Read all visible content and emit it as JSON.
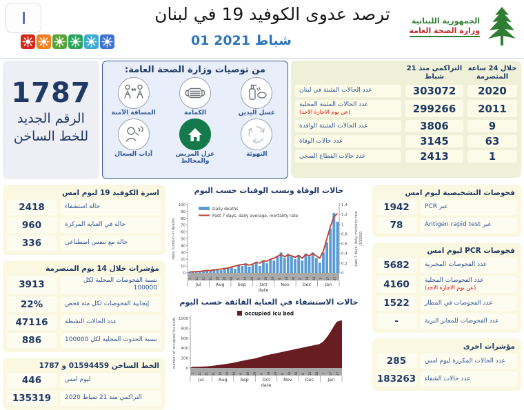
{
  "header": {
    "title": "ترصد عدوى الكوفيد 19 في لبنان",
    "date": "01 شباط 2021",
    "logo": {
      "line1": "الجمهورية اللبنانية",
      "line2": "وزارة الصحة العامة"
    },
    "virus_colors": [
      "#d6261a",
      "#f38020",
      "#58a339",
      "#2ba45f",
      "#3aabd6",
      "#3e74d1"
    ]
  },
  "hotline": {
    "number": "1787",
    "label": "الرقم الجديد للخط الساخن"
  },
  "recommendations": {
    "title": "من توصيات وزارة الصحة العامة:",
    "items": [
      {
        "label": "غسل اليدين",
        "icon": "handwash-icon"
      },
      {
        "label": "الكمامة",
        "icon": "mask-icon"
      },
      {
        "label": "المسافة الآمنة",
        "icon": "distance-icon"
      },
      {
        "label": "التهوئة",
        "icon": "ventilation-icon"
      },
      {
        "label": "عزل المريض والمخالط",
        "icon": "isolation-icon"
      },
      {
        "label": "آداب السعال",
        "icon": "cough-icon"
      }
    ]
  },
  "summary_table": {
    "col_24h": "خلال 24 ساعة المنصرمة",
    "col_cum": "التراكمي منذ 21 شباط",
    "rows": [
      {
        "label": "عدد الحالات المثبتة في لبنان",
        "note": "",
        "cum": "303072",
        "h24": "2020"
      },
      {
        "label": "عدد الحالات المثبتة المحلية",
        "note": "(عن يوم الاجازة الاحد)",
        "cum": "299266",
        "h24": "2011"
      },
      {
        "label": "عدد الحالات المثبتة الوافدة",
        "note": "",
        "cum": "3806",
        "h24": "9"
      },
      {
        "label": "عدد حالات الوفاة",
        "note": "",
        "cum": "3145",
        "h24": "63"
      },
      {
        "label": "عدد حالات القطاع الصحي",
        "note": "",
        "cum": "2413",
        "h24": "1"
      }
    ]
  },
  "left_column": {
    "sections": [
      {
        "title": "اسرة الكوفيد 19 ليوم امس",
        "rows": [
          {
            "value": "2418",
            "label": "حالة استشفاء",
            "note": ""
          },
          {
            "value": "960",
            "label": "حالة في العناية المركزة",
            "note": ""
          },
          {
            "value": "336",
            "label": "حالة مع تنفس اصطناعي",
            "note": ""
          }
        ]
      },
      {
        "title": "مؤشرات خلال 14 يوم المنصرمة",
        "rows": [
          {
            "value": "3913",
            "label": "نسبة الفحوصات المحلية لكل 100000",
            "note": ""
          },
          {
            "value": "22%",
            "label": "إيجابية الفحوصات لكل مئة فحص",
            "note": ""
          },
          {
            "value": "47116",
            "label": "عدد الحالات النشطة",
            "note": ""
          },
          {
            "value": "886",
            "label": "نسبة الحدوث المحلية لكل 100000",
            "note": ""
          }
        ]
      },
      {
        "title": "الخط الساخن 01594459 و 1787",
        "rows": [
          {
            "value": "446",
            "label": "ليوم امس",
            "note": ""
          },
          {
            "value": "135319",
            "label": "التراكمي منذ 21 شباط 2020",
            "note": ""
          }
        ]
      }
    ]
  },
  "right_column": {
    "sections": [
      {
        "title": "فحوصات التشخيصية ليوم امس",
        "rows": [
          {
            "value": "1942",
            "label": "عبر PCR",
            "note": ""
          },
          {
            "value": "78",
            "label": "عبر Antigen rapid test",
            "note": ""
          }
        ]
      },
      {
        "title": "فحوصات PCR ليوم امس",
        "rows": [
          {
            "value": "5682",
            "label": "عدد الفحوصات المخبرية",
            "note": ""
          },
          {
            "value": "4160",
            "label": "عدد الفحوصات المحلية",
            "note": "(عن يوم الاجازة الاحد)"
          },
          {
            "value": "1522",
            "label": "عدد الفحوصات في المطار",
            "note": ""
          },
          {
            "value": "-",
            "label": "عدد الفحوصات للمعابر البرية",
            "note": ""
          }
        ]
      },
      {
        "title": "مؤشرات اخرى",
        "rows": [
          {
            "value": "285",
            "label": "عدد الحالات المكررة  ليوم امس",
            "note": ""
          },
          {
            "value": "183263",
            "label": "عدد حالات الشفاء",
            "note": ""
          }
        ]
      }
    ]
  },
  "chart_data": [
    {
      "type": "bar",
      "title": "حالات الوفاة ونسب الوفيات حسب اليوم",
      "legend": [
        "Daily deaths",
        "Past 7 days, daily average, mortality rate"
      ],
      "ylabel_left": "daily number of deaths",
      "ylabel_right": "past 7 days, daily mortality rate",
      "ylabel_right2": "/100000",
      "xlabel": "date",
      "ylim_left": [
        0,
        100
      ],
      "ylim_right": [
        0,
        1.4
      ],
      "months": [
        "Jul",
        "Aug",
        "Sep",
        "Oct",
        "Nov",
        "Dec",
        "Jan"
      ],
      "day_ticks": [
        "1",
        "11",
        "21",
        "31",
        "10",
        "20",
        "30",
        "9",
        "19",
        "29",
        "9",
        "19",
        "29",
        "8",
        "18",
        "28",
        "8",
        "18",
        "28",
        "7",
        "17",
        "27"
      ],
      "daily_deaths": [
        1,
        2,
        1,
        2,
        2,
        3,
        3,
        4,
        5,
        4,
        6,
        7,
        8,
        6,
        12,
        10,
        14,
        9,
        12,
        16,
        10,
        18,
        14,
        20,
        18,
        25,
        30,
        22,
        28,
        24,
        20,
        26,
        18,
        28,
        24,
        30,
        22,
        15,
        30,
        45,
        65,
        88,
        75
      ],
      "mortality_rate": [
        0.02,
        0.02,
        0.03,
        0.03,
        0.04,
        0.05,
        0.05,
        0.06,
        0.07,
        0.08,
        0.09,
        0.1,
        0.12,
        0.14,
        0.16,
        0.17,
        0.18,
        0.16,
        0.18,
        0.22,
        0.2,
        0.25,
        0.24,
        0.28,
        0.3,
        0.34,
        0.38,
        0.33,
        0.37,
        0.35,
        0.32,
        0.36,
        0.3,
        0.38,
        0.35,
        0.4,
        0.35,
        0.3,
        0.45,
        0.7,
        0.95,
        1.15,
        1.22
      ],
      "bar_color": "#5b9bd5",
      "line_color": "#bf3a2b"
    },
    {
      "type": "area",
      "title": "حالات الاستشفاء في العناية الفائقة حسب اليوم",
      "legend": [
        "occupied icu bed"
      ],
      "ylabel": "number of occupied icu beds",
      "xlabel": "date",
      "ylim": [
        0,
        1000
      ],
      "months": [
        "Jul",
        "Aug",
        "Sep",
        "Oct",
        "Nov",
        "Dec",
        "Jan"
      ],
      "day_ticks": [
        "1",
        "11",
        "21",
        "31",
        "10",
        "20",
        "30",
        "9",
        "19",
        "29",
        "9",
        "19",
        "29",
        "8",
        "18",
        "28",
        "8",
        "18",
        "28",
        "7",
        "17",
        "27"
      ],
      "values": [
        20,
        22,
        25,
        28,
        32,
        38,
        45,
        55,
        65,
        75,
        85,
        95,
        110,
        125,
        140,
        155,
        170,
        180,
        195,
        215,
        235,
        255,
        270,
        285,
        300,
        315,
        330,
        345,
        360,
        375,
        390,
        405,
        420,
        435,
        450,
        465,
        480,
        520,
        600,
        700,
        820,
        930,
        955
      ],
      "area_color": "#681d23"
    }
  ]
}
